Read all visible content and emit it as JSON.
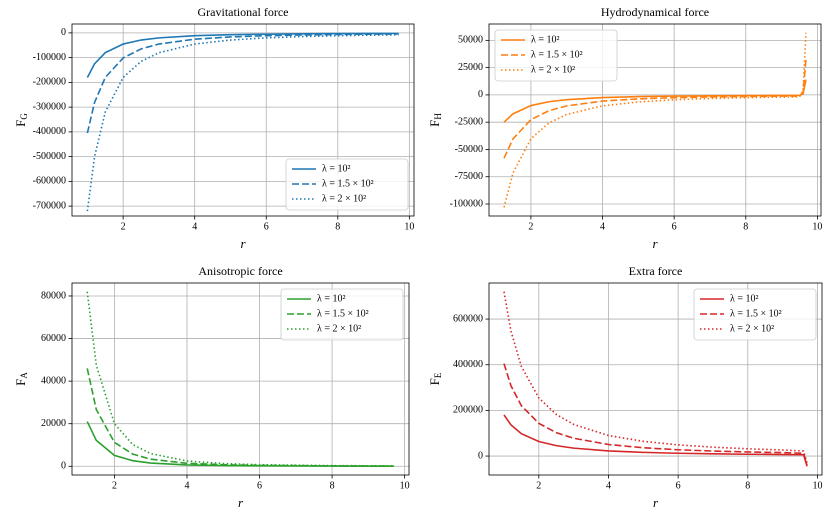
{
  "chart_data": [
    {
      "type": "line",
      "title": "Gravitational force",
      "x_label": "r",
      "y_label": "F",
      "y_label_sub": "G",
      "x": [
        1.0,
        1.2,
        1.5,
        2,
        2.5,
        3,
        4,
        5,
        6,
        7,
        8,
        9,
        9.7
      ],
      "series": [
        {
          "name": "λ = 10²",
          "color": "#1f77b4",
          "linestyle": "solid",
          "values": [
            -180000,
            -125000,
            -80000,
            -45000,
            -28800,
            -20000,
            -11250,
            -7200,
            -5000,
            -3673,
            -2813,
            -2222,
            -1913
          ]
        },
        {
          "name": "λ = 1.5 × 10²",
          "color": "#1f77b4",
          "linestyle": "dashed",
          "values": [
            -405000,
            -281250,
            -180000,
            -101250,
            -64800,
            -45000,
            -25313,
            -16200,
            -11250,
            -8265,
            -6328,
            -5000,
            -4304
          ]
        },
        {
          "name": "λ = 2 × 10²",
          "color": "#1f77b4",
          "linestyle": "dotted",
          "values": [
            -720000,
            -500000,
            -320000,
            -180000,
            -115200,
            -80000,
            -45000,
            -28800,
            -20000,
            -14694,
            -11250,
            -8889,
            -7652
          ]
        }
      ],
      "xlim": [
        0.57,
        10.13
      ],
      "xticks": [
        2,
        4,
        6,
        8,
        10
      ],
      "ylim": [
        -740000,
        36000
      ],
      "yticks": [
        -700000,
        -600000,
        -500000,
        -400000,
        -300000,
        -200000,
        -100000,
        0
      ],
      "grid": true,
      "legend": "lower right"
    },
    {
      "type": "line",
      "title": "Hydrodynamical force",
      "x_label": "r",
      "y_label": "F",
      "y_label_sub": "H",
      "x": [
        1.25,
        1.5,
        2,
        2.5,
        3,
        4,
        5,
        6,
        7,
        8,
        9,
        9.5,
        9.6,
        9.68
      ],
      "series": [
        {
          "name": "λ = 10²",
          "color": "#ff7f0e",
          "linestyle": "solid",
          "values": [
            -25000,
            -17360,
            -9770,
            -6250,
            -4340,
            -2440,
            -1560,
            -1090,
            -800,
            -610,
            -480,
            -430,
            1000,
            14000
          ]
        },
        {
          "name": "λ = 1.5 × 10²",
          "color": "#ff7f0e",
          "linestyle": "dashed",
          "values": [
            -58000,
            -40280,
            -22660,
            -14500,
            -10070,
            -5670,
            -3630,
            -2520,
            -1850,
            -1420,
            -1120,
            -1000,
            2500,
            32000
          ]
        },
        {
          "name": "λ = 2 × 10²",
          "color": "#ff7f0e",
          "linestyle": "dotted",
          "values": [
            -103000,
            -71530,
            -40240,
            -25750,
            -17880,
            -10060,
            -6440,
            -4470,
            -3290,
            -2510,
            -1990,
            -1780,
            4000,
            57000
          ]
        }
      ],
      "xlim": [
        0.83,
        10.1
      ],
      "xticks": [
        2,
        4,
        6,
        8,
        10
      ],
      "ylim": [
        -111000,
        65000
      ],
      "yticks": [
        -100000,
        -75000,
        -50000,
        -25000,
        0,
        25000,
        50000
      ],
      "grid": true,
      "legend": "upper left"
    },
    {
      "type": "line",
      "title": "Anisotropic force",
      "x_label": "r",
      "y_label": "F",
      "y_label_sub": "A",
      "x": [
        1.25,
        1.5,
        2,
        2.5,
        3,
        4,
        5,
        6,
        8,
        9.7
      ],
      "series": [
        {
          "name": "λ = 10²",
          "color": "#2ca02c",
          "linestyle": "solid",
          "values": [
            21000,
            12150,
            5130,
            2630,
            1520,
            640,
            330,
            190,
            80,
            45
          ]
        },
        {
          "name": "λ = 1.5 × 10²",
          "color": "#2ca02c",
          "linestyle": "dashed",
          "values": [
            46000,
            26620,
            11230,
            5750,
            3330,
            1400,
            720,
            420,
            175,
            100
          ]
        },
        {
          "name": "λ = 2 × 10²",
          "color": "#2ca02c",
          "linestyle": "dotted",
          "values": [
            82000,
            47450,
            20020,
            10250,
            5930,
            2500,
            1280,
            740,
            310,
            175
          ]
        }
      ],
      "xlim": [
        0.83,
        10.12
      ],
      "xticks": [
        2,
        4,
        6,
        8,
        10
      ],
      "ylim": [
        -4100,
        86100
      ],
      "yticks": [
        0,
        20000,
        40000,
        60000,
        80000
      ],
      "grid": true,
      "legend": "upper right"
    },
    {
      "type": "line",
      "title": "Extra force",
      "x_label": "r",
      "y_label": "F",
      "y_label_sub": "E",
      "x": [
        1.0,
        1.2,
        1.5,
        2,
        2.5,
        3,
        4,
        5,
        6,
        7,
        8,
        9,
        9.6,
        9.7
      ],
      "series": [
        {
          "name": "λ = 10²",
          "color": "#d62728",
          "linestyle": "solid",
          "values": [
            180000,
            136900,
            97970,
            63640,
            45540,
            34650,
            22500,
            16100,
            12250,
            9720,
            7950,
            6670,
            6000,
            -45000
          ]
        },
        {
          "name": "λ = 1.5 × 10²",
          "color": "#d62728",
          "linestyle": "dashed",
          "values": [
            405000,
            308100,
            220400,
            143200,
            102500,
            77960,
            50630,
            36210,
            27560,
            21870,
            17900,
            15000,
            12000,
            -40000
          ]
        },
        {
          "name": "λ = 2 × 10²",
          "color": "#d62728",
          "linestyle": "dotted",
          "values": [
            720000,
            547700,
            391900,
            254600,
            182200,
            138600,
            90000,
            64400,
            48990,
            38880,
            31820,
            26640,
            22000,
            -30000
          ]
        }
      ],
      "xlim": [
        0.57,
        10.13
      ],
      "xticks": [
        2,
        4,
        6,
        8,
        10
      ],
      "ylim": [
        -83000,
        758000
      ],
      "yticks": [
        0,
        200000,
        400000,
        600000
      ],
      "grid": true,
      "legend": "upper right"
    }
  ]
}
